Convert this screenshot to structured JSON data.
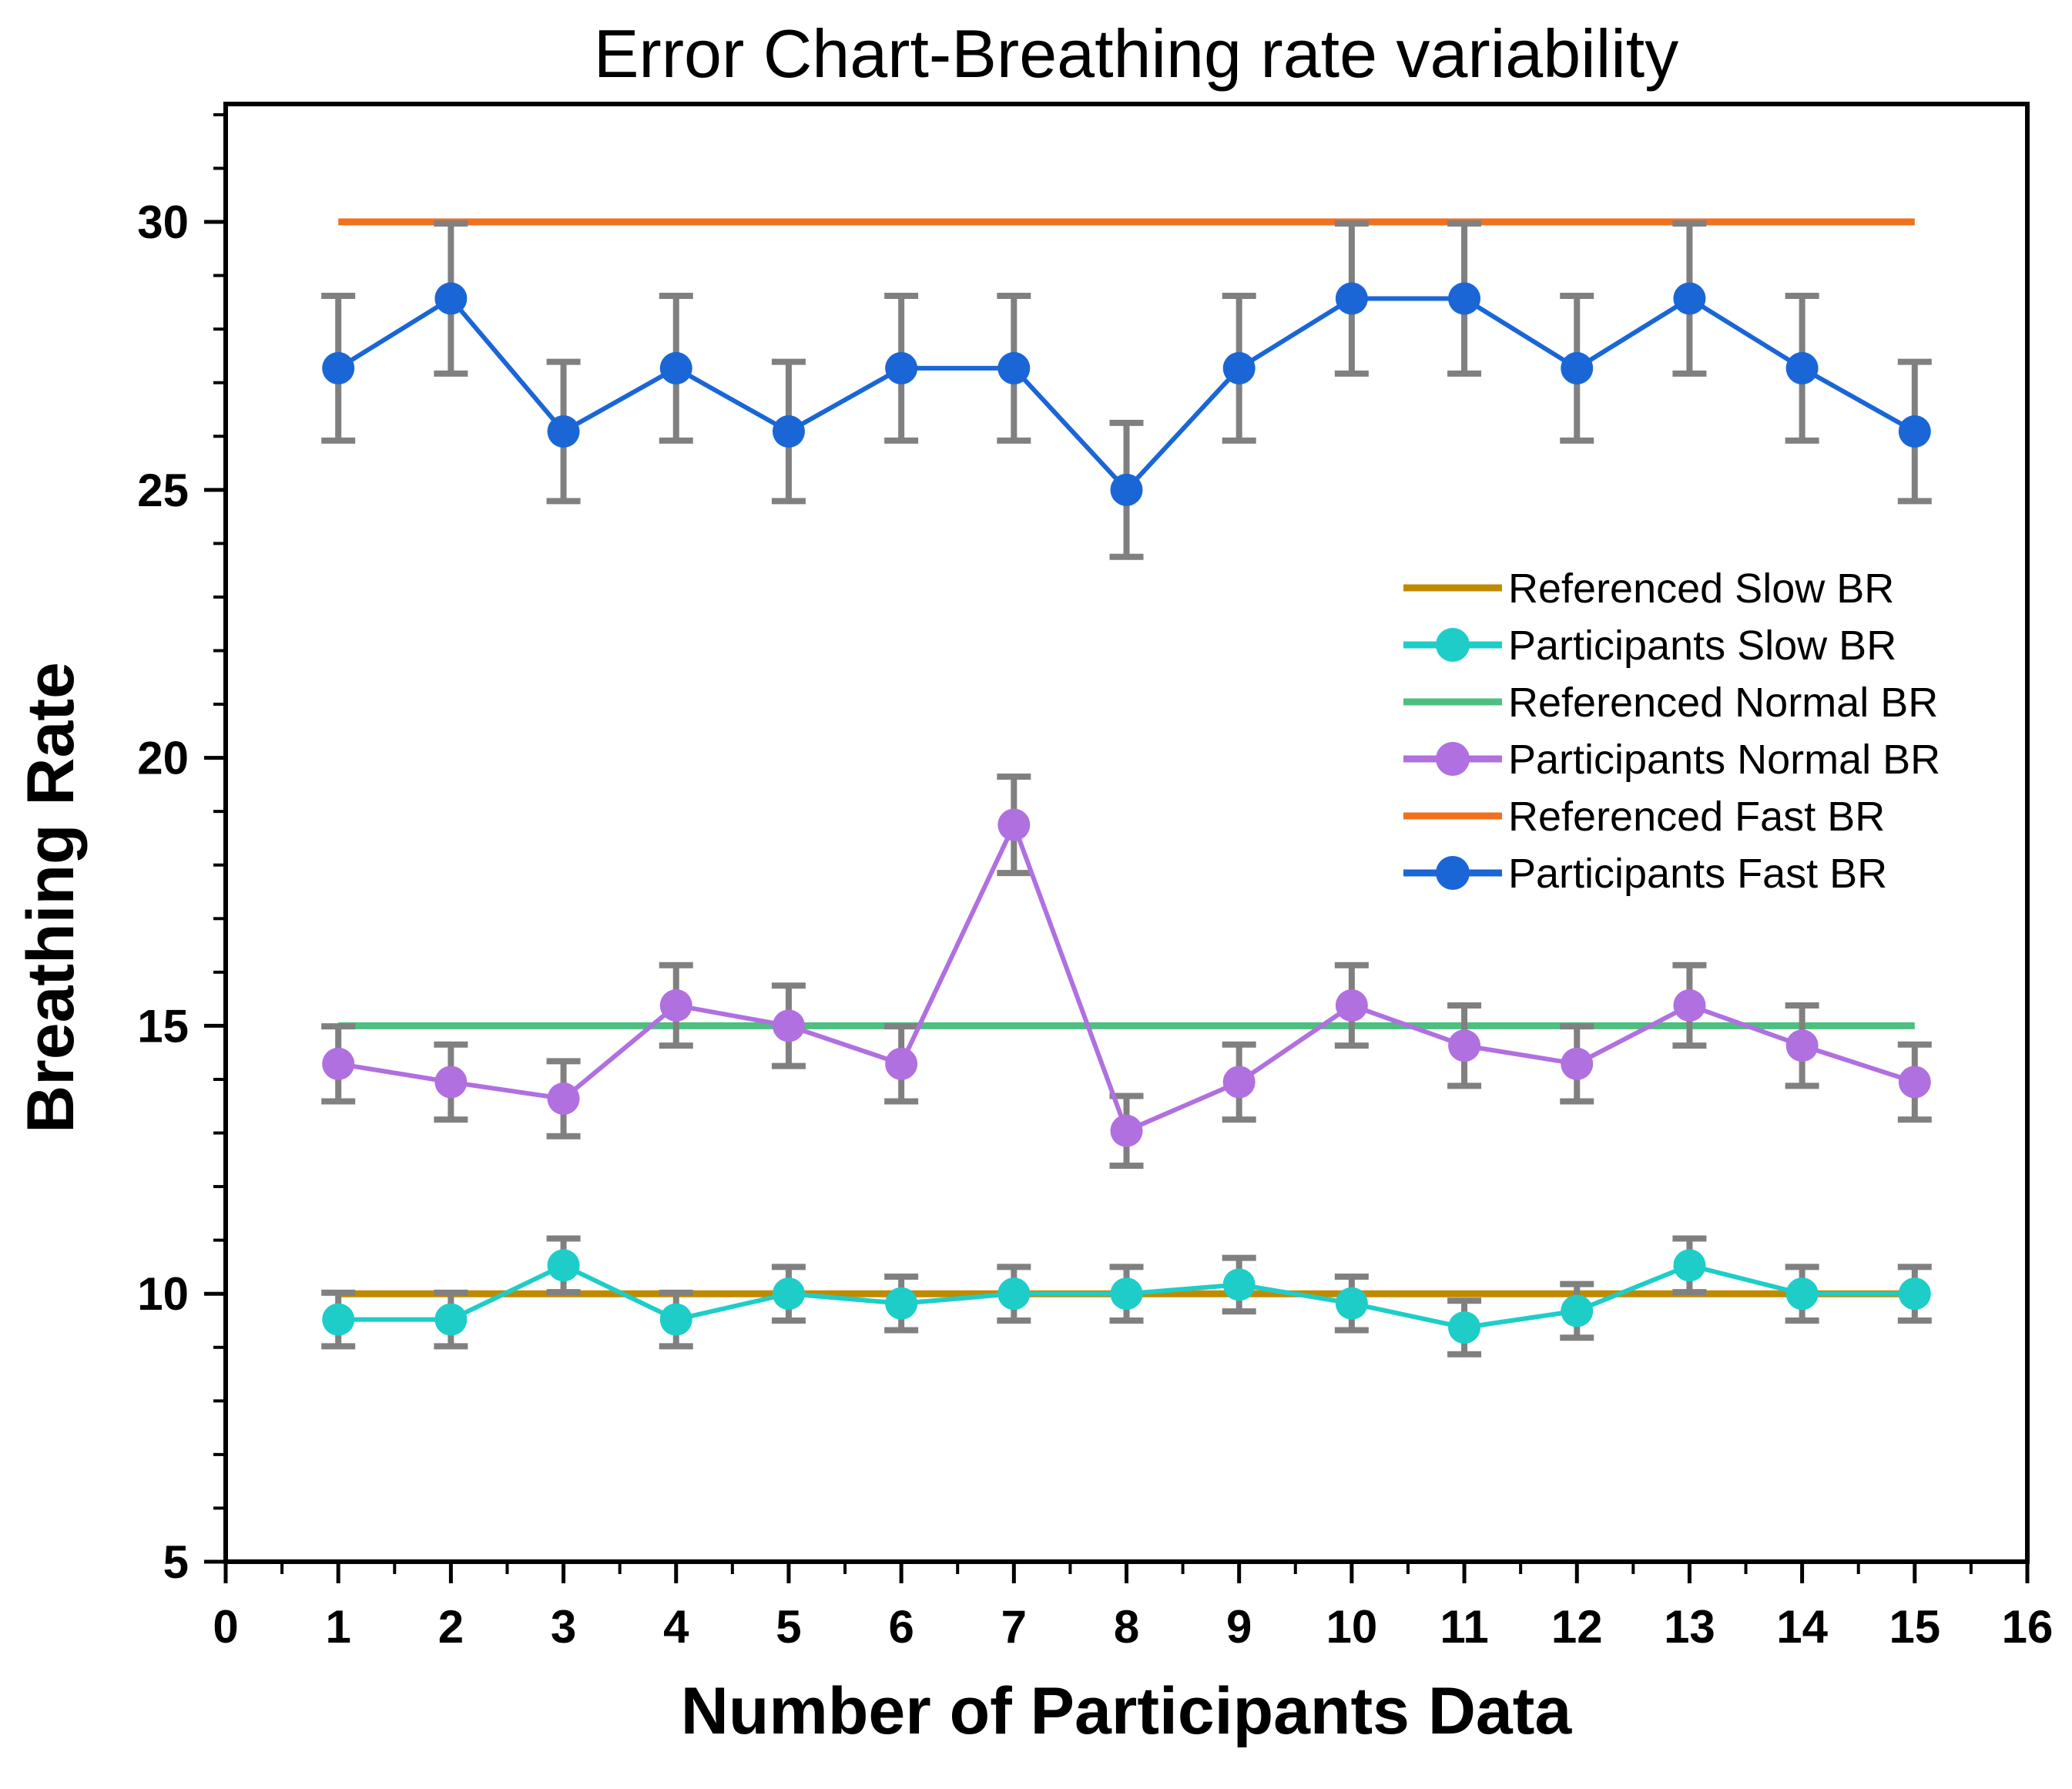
{
  "chart_data": {
    "type": "line",
    "title": "Error Chart-Breathing rate variability",
    "xlabel": "Number of Participants Data",
    "ylabel": "Breathing Rate",
    "xlim": [
      0,
      16
    ],
    "ylim": [
      5,
      32.2
    ],
    "x_ticks": [
      0,
      1,
      2,
      3,
      4,
      5,
      6,
      7,
      8,
      9,
      10,
      11,
      12,
      13,
      14,
      15,
      16
    ],
    "y_ticks": [
      5,
      10,
      15,
      20,
      25,
      30
    ],
    "grid": false,
    "legend_position": "center-right",
    "x": [
      1,
      2,
      3,
      4,
      5,
      6,
      7,
      8,
      9,
      10,
      11,
      12,
      13,
      14,
      15
    ],
    "reference_lines": [
      {
        "name": "Referenced Slow BR",
        "value": 10,
        "x_range": [
          1,
          15
        ],
        "color": "#c08a00"
      },
      {
        "name": "Referenced Normal BR",
        "value": 15,
        "x_range": [
          1,
          15
        ],
        "color": "#4dbf7f"
      },
      {
        "name": "Referenced Fast BR",
        "value": 30,
        "x_range": [
          1,
          15
        ],
        "color": "#f07020"
      }
    ],
    "series": [
      {
        "name": "Participants Slow BR",
        "color": "#1ecdc8",
        "values": [
          9.52,
          9.52,
          10.53,
          9.52,
          10.0,
          9.82,
          10.0,
          10.0,
          10.17,
          9.82,
          9.37,
          9.68,
          10.53,
          10.0,
          10.0
        ],
        "errors": [
          0.5,
          0.5,
          0.5,
          0.5,
          0.5,
          0.5,
          0.5,
          0.5,
          0.5,
          0.5,
          0.5,
          0.5,
          0.5,
          0.5,
          0.5
        ]
      },
      {
        "name": "Participants Normal BR",
        "color": "#b070e0",
        "values": [
          14.29,
          13.95,
          13.64,
          15.38,
          15.0,
          14.29,
          18.75,
          13.04,
          13.95,
          15.38,
          14.63,
          14.29,
          15.38,
          14.63,
          13.95
        ],
        "errors": [
          0.7,
          0.7,
          0.7,
          0.75,
          0.75,
          0.7,
          0.9,
          0.65,
          0.7,
          0.75,
          0.75,
          0.7,
          0.75,
          0.75,
          0.7
        ]
      },
      {
        "name": "Participants Fast BR",
        "color": "#1a66d6",
        "values": [
          27.27,
          28.57,
          26.09,
          27.27,
          26.09,
          27.27,
          27.27,
          25.0,
          27.27,
          28.57,
          28.57,
          27.27,
          28.57,
          27.27,
          26.09
        ],
        "errors": [
          1.35,
          1.4,
          1.3,
          1.35,
          1.3,
          1.35,
          1.35,
          1.25,
          1.35,
          1.4,
          1.4,
          1.35,
          1.4,
          1.35,
          1.3
        ]
      }
    ],
    "legend": [
      {
        "label": "Referenced Slow BR",
        "kind": "line",
        "color": "#c08a00"
      },
      {
        "label": "Participants Slow BR",
        "kind": "marker",
        "color": "#1ecdc8"
      },
      {
        "label": "Referenced Normal BR",
        "kind": "line",
        "color": "#4dbf7f"
      },
      {
        "label": "Participants Normal BR",
        "kind": "marker",
        "color": "#b070e0"
      },
      {
        "label": "Referenced Fast BR",
        "kind": "line",
        "color": "#f07020"
      },
      {
        "label": "Participants Fast BR",
        "kind": "marker",
        "color": "#1a66d6"
      }
    ],
    "error_bar_color": "#808080"
  }
}
